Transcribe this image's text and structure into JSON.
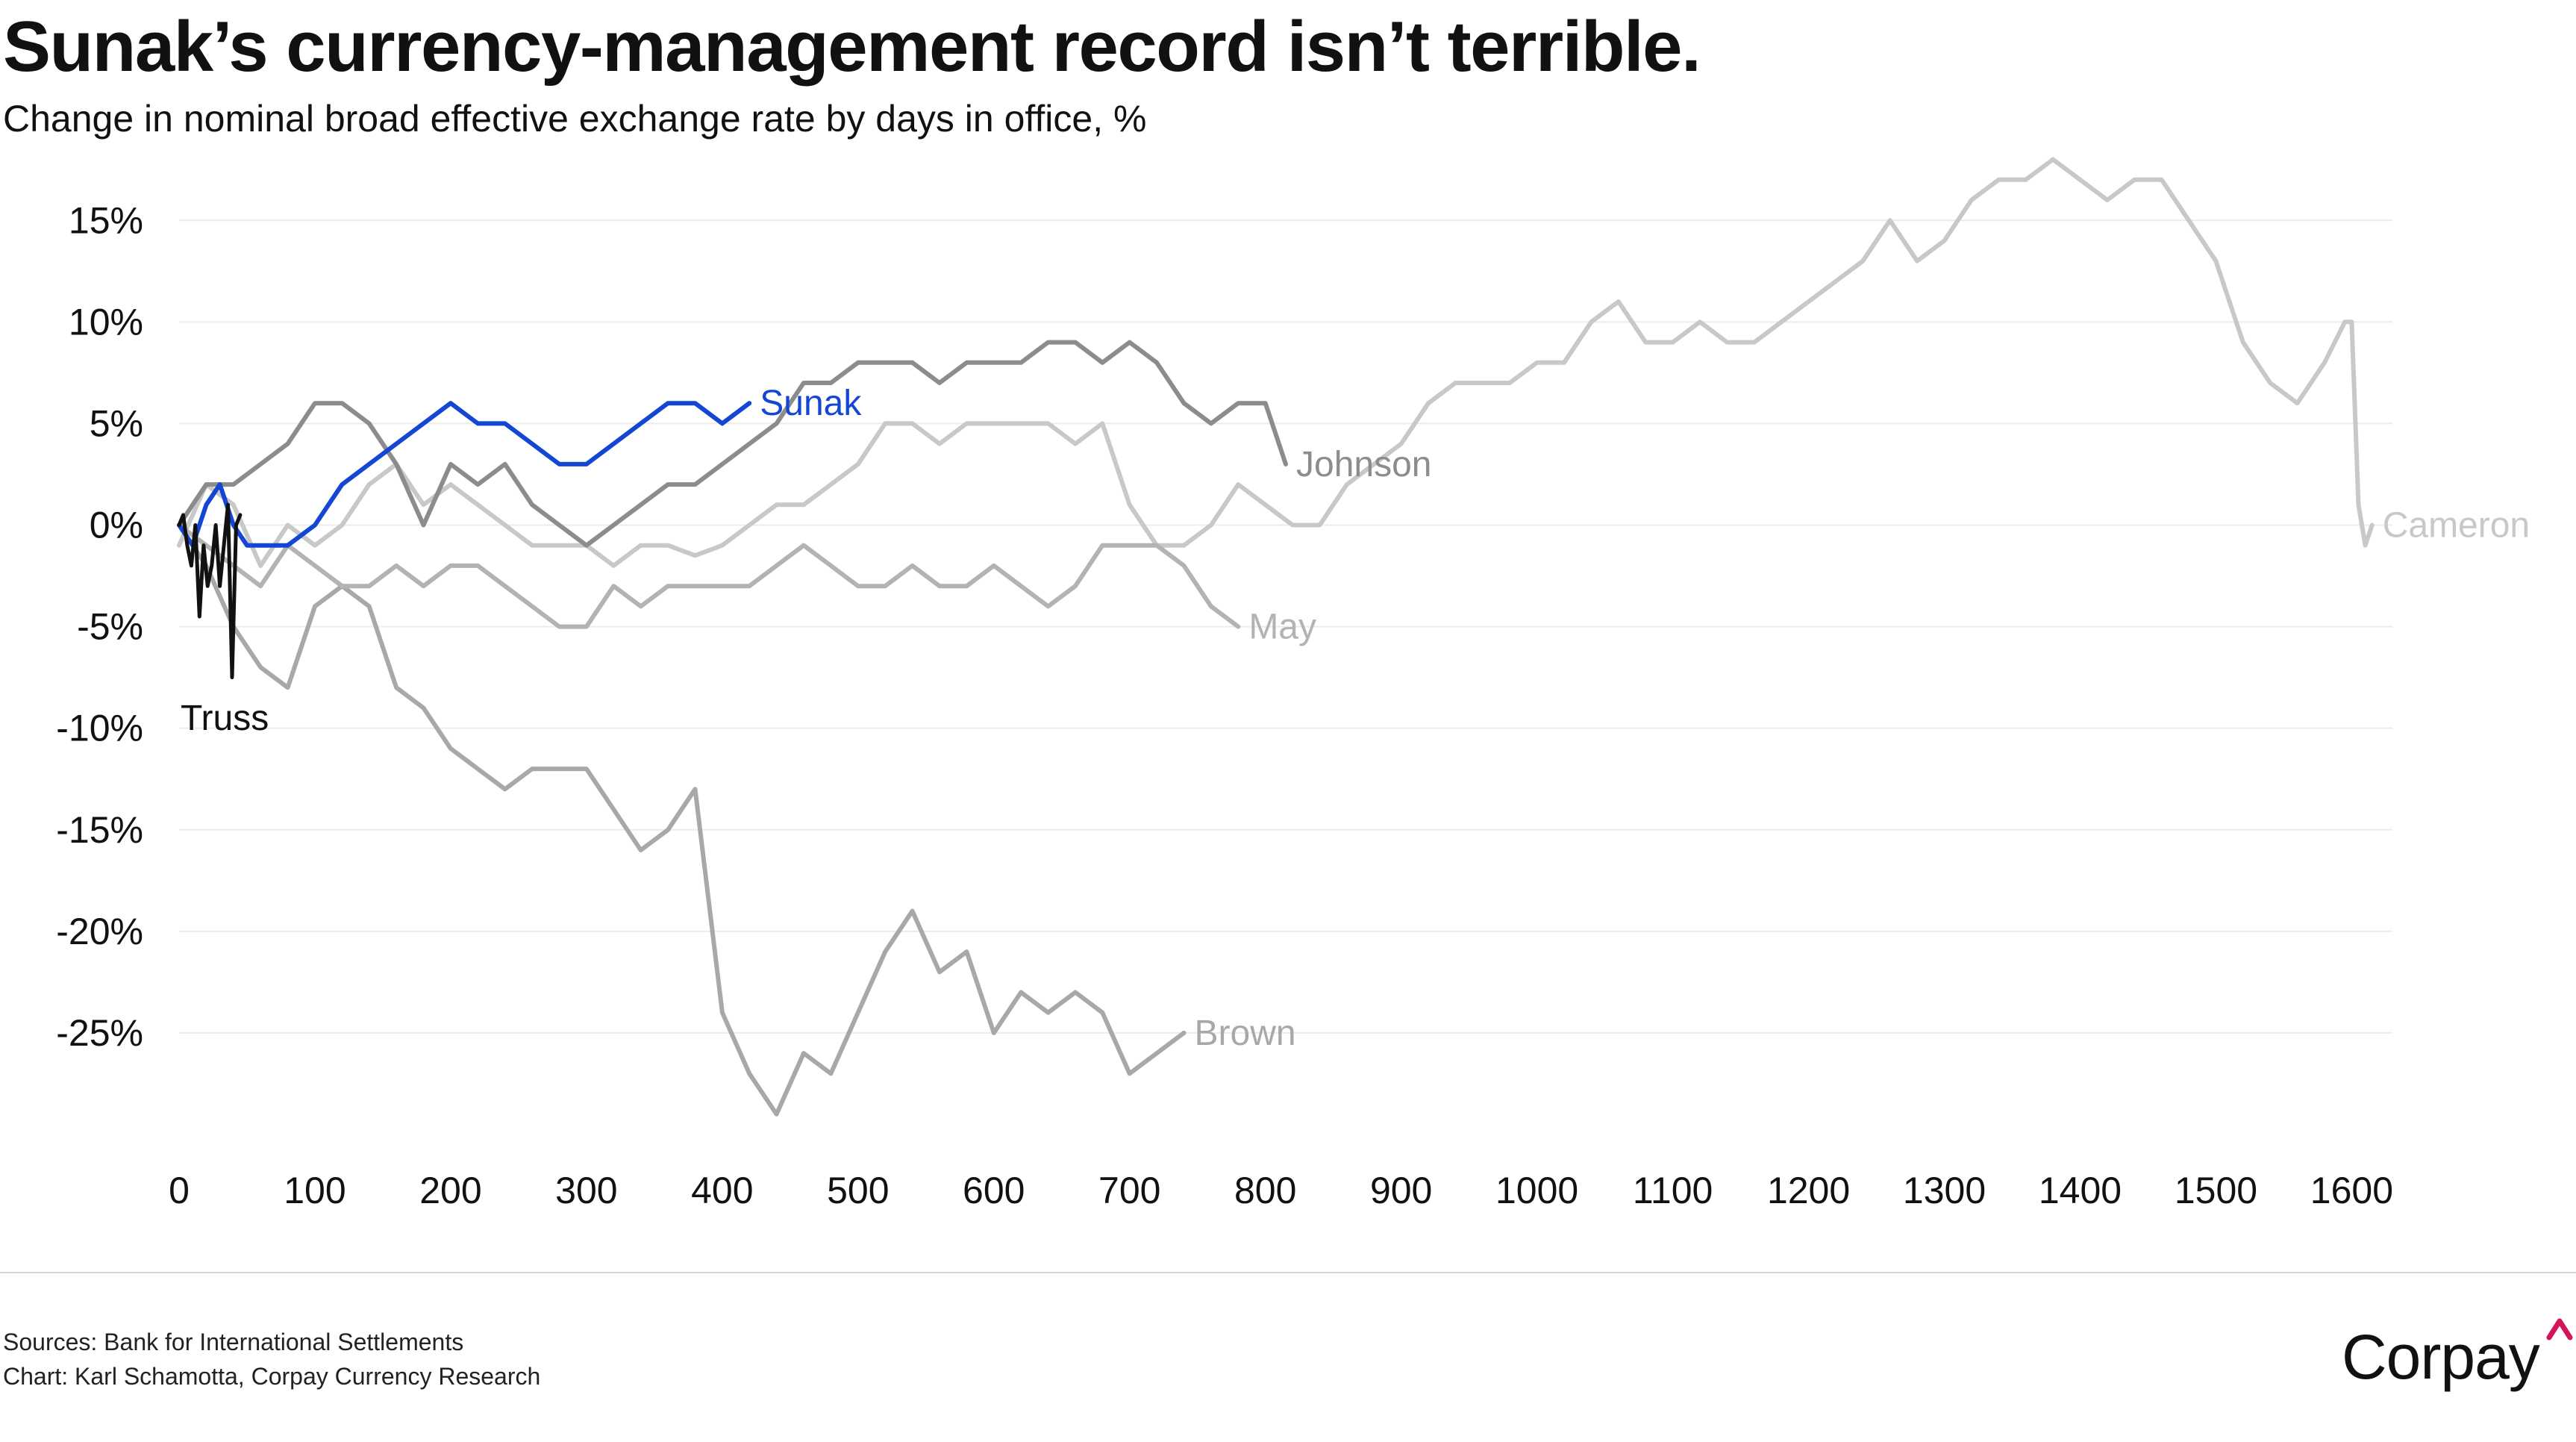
{
  "title": "Sunak’s currency-management record isn’t terrible.",
  "subtitle": "Change in nominal broad effective exchange rate by days in office, %",
  "sources": [
    "Sources: Bank for International Settlements",
    "Chart: Karl Schamotta, Corpay Currency Research"
  ],
  "brand": {
    "name": "Corpay",
    "accent_color": "#d4145a"
  },
  "chart_data": {
    "type": "line",
    "title": "Sunak’s currency-management record isn’t terrible.",
    "subtitle": "Change in nominal broad effective exchange rate by days in office, %",
    "xlabel": "",
    "ylabel": "",
    "xlim": [
      0,
      1630
    ],
    "ylim": [
      -30,
      18.5
    ],
    "x_ticks": [
      0,
      100,
      200,
      300,
      400,
      500,
      600,
      700,
      800,
      900,
      1000,
      1100,
      1200,
      1300,
      1400,
      1500,
      1600
    ],
    "y_ticks": [
      15,
      10,
      5,
      0,
      -5,
      -10,
      -15,
      -20,
      -25
    ],
    "y_tick_labels": [
      "15%",
      "10%",
      "5%",
      "0%",
      "-5%",
      "-10%",
      "-15%",
      "-20%",
      "-25%"
    ],
    "grid": "horizontal",
    "legend": "none (series labelled at line ends)",
    "series": [
      {
        "name": "Cameron",
        "color": "#c8c8c8",
        "x": [
          0,
          20,
          40,
          60,
          80,
          100,
          120,
          140,
          160,
          180,
          200,
          220,
          240,
          260,
          280,
          300,
          320,
          340,
          360,
          380,
          400,
          420,
          440,
          460,
          480,
          500,
          520,
          540,
          560,
          580,
          600,
          620,
          640,
          660,
          680,
          700,
          720,
          740,
          760,
          780,
          800,
          820,
          840,
          860,
          880,
          900,
          920,
          940,
          960,
          980,
          1000,
          1020,
          1040,
          1060,
          1080,
          1100,
          1120,
          1140,
          1160,
          1180,
          1200,
          1220,
          1240,
          1260,
          1280,
          1300,
          1320,
          1340,
          1360,
          1380,
          1400,
          1420,
          1440,
          1460,
          1480,
          1500,
          1520,
          1540,
          1560,
          1580,
          1595,
          1600,
          1605,
          1610,
          1615
        ],
        "values": [
          -1,
          2,
          1,
          -2,
          0,
          -1,
          0,
          2,
          3,
          1,
          2,
          1,
          0,
          -1,
          -1,
          -1,
          -2,
          -1,
          -1,
          -1.5,
          -1,
          0,
          1,
          1,
          2,
          3,
          5,
          5,
          4,
          5,
          5,
          5,
          5,
          4,
          5,
          1,
          -1,
          -1,
          0,
          2,
          1,
          0,
          0,
          2,
          3,
          4,
          6,
          7,
          7,
          7,
          8,
          8,
          10,
          11,
          9,
          9,
          10,
          9,
          9,
          10,
          11,
          12,
          13,
          15,
          13,
          14,
          16,
          17,
          17,
          18,
          17,
          16,
          17,
          17,
          15,
          13,
          9,
          7,
          6,
          8,
          10,
          10,
          1,
          -1,
          0
        ]
      },
      {
        "name": "Brown",
        "color": "#a8a8a8",
        "x": [
          0,
          20,
          40,
          60,
          80,
          100,
          120,
          140,
          160,
          180,
          200,
          220,
          240,
          260,
          280,
          300,
          320,
          340,
          360,
          380,
          400,
          420,
          440,
          460,
          480,
          500,
          520,
          540,
          560,
          580,
          600,
          620,
          640,
          660,
          680,
          700,
          720,
          740
        ],
        "values": [
          0,
          -2,
          -5,
          -7,
          -8,
          -4,
          -3,
          -4,
          -8,
          -9,
          -11,
          -12,
          -13,
          -12,
          -12,
          -12,
          -14,
          -16,
          -15,
          -13,
          -24,
          -27,
          -29,
          -26,
          -27,
          -24,
          -21,
          -19,
          -22,
          -21,
          -25,
          -23,
          -24,
          -23,
          -24,
          -27,
          -26,
          -25
        ]
      },
      {
        "name": "May",
        "color": "#b3b3b3",
        "x": [
          0,
          20,
          40,
          60,
          80,
          100,
          120,
          140,
          160,
          180,
          200,
          220,
          240,
          260,
          280,
          300,
          320,
          340,
          360,
          380,
          400,
          420,
          440,
          460,
          480,
          500,
          520,
          540,
          560,
          580,
          600,
          620,
          640,
          660,
          680,
          700,
          720,
          740,
          760,
          780
        ],
        "values": [
          0,
          -1,
          -2,
          -3,
          -1,
          -2,
          -3,
          -3,
          -2,
          -3,
          -2,
          -2,
          -3,
          -4,
          -5,
          -5,
          -3,
          -4,
          -3,
          -3,
          -3,
          -3,
          -2,
          -1,
          -2,
          -3,
          -3,
          -2,
          -3,
          -3,
          -2,
          -3,
          -4,
          -3,
          -1,
          -1,
          -1,
          -2,
          -4,
          -5
        ]
      },
      {
        "name": "Johnson",
        "color": "#8c8c8c",
        "x": [
          0,
          20,
          40,
          60,
          80,
          100,
          120,
          140,
          160,
          180,
          200,
          220,
          240,
          260,
          280,
          300,
          320,
          340,
          360,
          380,
          400,
          420,
          440,
          460,
          480,
          500,
          520,
          540,
          560,
          580,
          600,
          620,
          640,
          660,
          680,
          700,
          720,
          740,
          760,
          780,
          800,
          815
        ],
        "values": [
          0,
          2,
          2,
          3,
          4,
          6,
          6,
          5,
          3,
          0,
          3,
          2,
          3,
          1,
          0,
          -1,
          0,
          1,
          2,
          2,
          3,
          4,
          5,
          7,
          7,
          8,
          8,
          8,
          7,
          8,
          8,
          8,
          9,
          9,
          8,
          9,
          8,
          6,
          5,
          6,
          6,
          3
        ]
      },
      {
        "name": "Sunak",
        "color": "#1446d4",
        "x": [
          0,
          10,
          20,
          30,
          40,
          50,
          60,
          80,
          100,
          120,
          140,
          160,
          180,
          200,
          220,
          240,
          260,
          280,
          300,
          320,
          340,
          360,
          380,
          400,
          420
        ],
        "values": [
          0,
          -1,
          1,
          2,
          0,
          -1,
          -1,
          -1,
          0,
          2,
          3,
          4,
          5,
          6,
          5,
          5,
          4,
          3,
          3,
          4,
          5,
          6,
          6,
          5,
          6
        ]
      },
      {
        "name": "Truss",
        "color": "#111111",
        "x": [
          0,
          3,
          6,
          9,
          12,
          15,
          18,
          21,
          24,
          27,
          30,
          33,
          36,
          39,
          42,
          45
        ],
        "values": [
          0,
          0.5,
          -1,
          -2,
          0,
          -4.5,
          -1,
          -3,
          -2,
          0,
          -3,
          -1,
          1,
          -7.5,
          0,
          0.5
        ]
      }
    ],
    "series_labels": [
      "Sunak",
      "Johnson",
      "Cameron",
      "May",
      "Brown",
      "Truss"
    ]
  }
}
